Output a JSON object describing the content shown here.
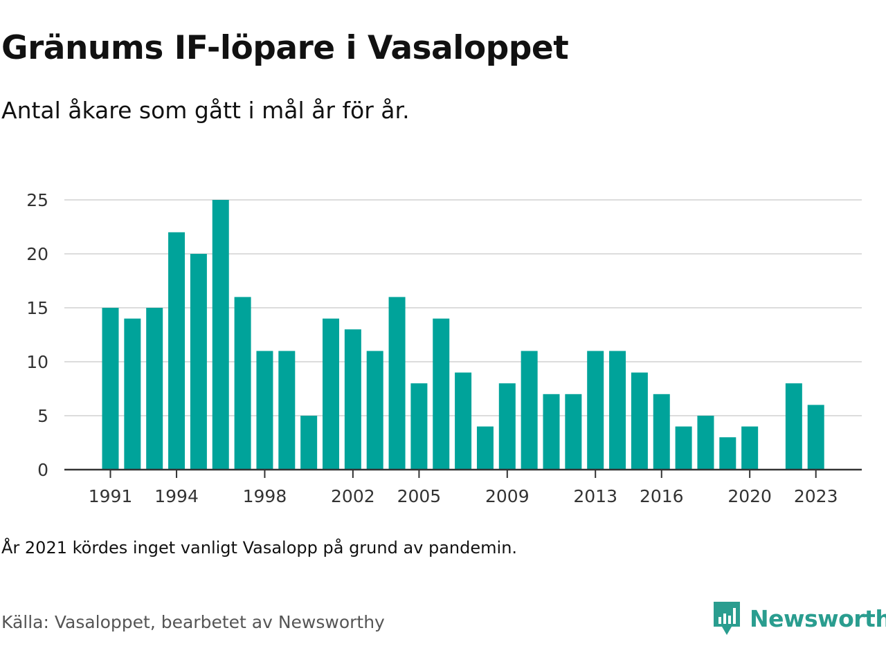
{
  "header": {
    "title": "Gränums IF-löpare i Vasaloppet",
    "subtitle": "Antal åkare som gått i mål år för år."
  },
  "footer": {
    "note": "År 2021 kördes inget vanligt Vasalopp på grund av pandemin.",
    "source": "Källa: Vasaloppet, bearbetet av Newsworthy",
    "brand": "Newsworthy",
    "brand_color": "#2a9d8f",
    "logo_icon": "newsworthy-bar-chart-icon"
  },
  "chart_data": {
    "type": "bar",
    "bar_color": "#00a39a",
    "grid": true,
    "ylim": [
      0,
      25
    ],
    "yticks": [
      0,
      5,
      10,
      15,
      20,
      25
    ],
    "xtick_labels": [
      "1991",
      "1994",
      "1998",
      "2002",
      "2005",
      "2009",
      "2013",
      "2016",
      "2020",
      "2023"
    ],
    "categories": [
      "1991",
      "1992",
      "1993",
      "1994",
      "1995",
      "1996",
      "1997",
      "1998",
      "1999",
      "2000",
      "2001",
      "2002",
      "2003",
      "2004",
      "2005",
      "2006",
      "2007",
      "2008",
      "2009",
      "2010",
      "2011",
      "2012",
      "2013",
      "2014",
      "2015",
      "2016",
      "2017",
      "2018",
      "2019",
      "2020",
      "2021",
      "2022",
      "2023"
    ],
    "values": [
      15,
      14,
      15,
      22,
      20,
      25,
      16,
      11,
      11,
      5,
      14,
      13,
      11,
      16,
      8,
      14,
      9,
      4,
      8,
      11,
      7,
      7,
      11,
      11,
      9,
      7,
      4,
      5,
      3,
      4,
      null,
      8,
      6
    ]
  }
}
